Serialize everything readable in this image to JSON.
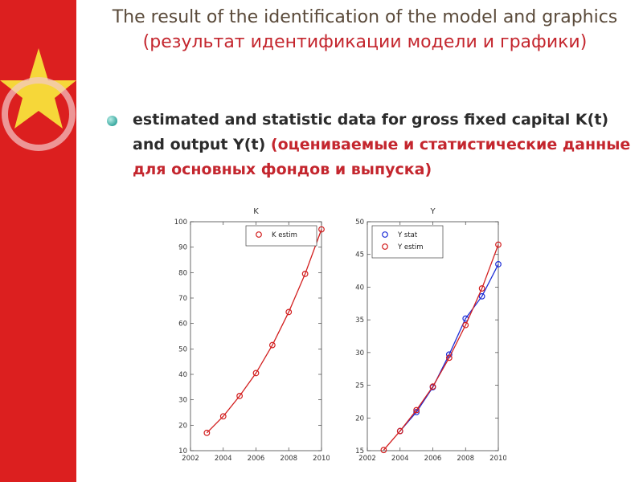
{
  "slide": {
    "title_en": "The result of the identification of the model and graphics",
    "title_ru": "(результат идентификации модели и графики)",
    "bullet_en": "estimated and statistic data for gross fixed capital K(t) and output Y(t)",
    "bullet_ru": "(оцениваемые и статистические данные для основных фондов и выпуска)"
  },
  "colors": {
    "accent_red": "#c4262e",
    "series_red": "#d21e1e",
    "series_blue": "#1f2fd6",
    "teal_bullet": "#3aa9a0"
  },
  "chart_data": [
    {
      "type": "line",
      "title": "K",
      "x": [
        2003,
        2004,
        2005,
        2006,
        2007,
        2008,
        2009,
        2010
      ],
      "series": [
        {
          "name": "K estim",
          "color": "#d21e1e",
          "values": [
            17,
            23.5,
            31.5,
            40.5,
            51.5,
            64.5,
            79.5,
            97
          ]
        }
      ],
      "xlim": [
        2002,
        2010
      ],
      "ylim": [
        10,
        100
      ],
      "xticks": [
        2002,
        2004,
        2006,
        2008,
        2010
      ],
      "yticks": [
        10,
        20,
        30,
        40,
        50,
        60,
        70,
        80,
        90,
        100
      ],
      "legend": "top-right",
      "grid": false
    },
    {
      "type": "line",
      "title": "Y",
      "x": [
        2003,
        2004,
        2005,
        2006,
        2007,
        2008,
        2009,
        2010
      ],
      "series": [
        {
          "name": "Y stat",
          "color": "#1f2fd6",
          "values": [
            null,
            18,
            20.9,
            24.7,
            29.7,
            35.2,
            38.6,
            43.5
          ]
        },
        {
          "name": "Y estim",
          "color": "#d21e1e",
          "values": [
            15.1,
            18,
            21.2,
            24.8,
            29.2,
            34.2,
            39.8,
            46.5
          ]
        }
      ],
      "xlim": [
        2002,
        2010
      ],
      "ylim": [
        15,
        50
      ],
      "xticks": [
        2002,
        2004,
        2006,
        2008,
        2010
      ],
      "yticks": [
        15,
        20,
        25,
        30,
        35,
        40,
        45,
        50
      ],
      "legend": "top-left",
      "grid": false
    }
  ]
}
